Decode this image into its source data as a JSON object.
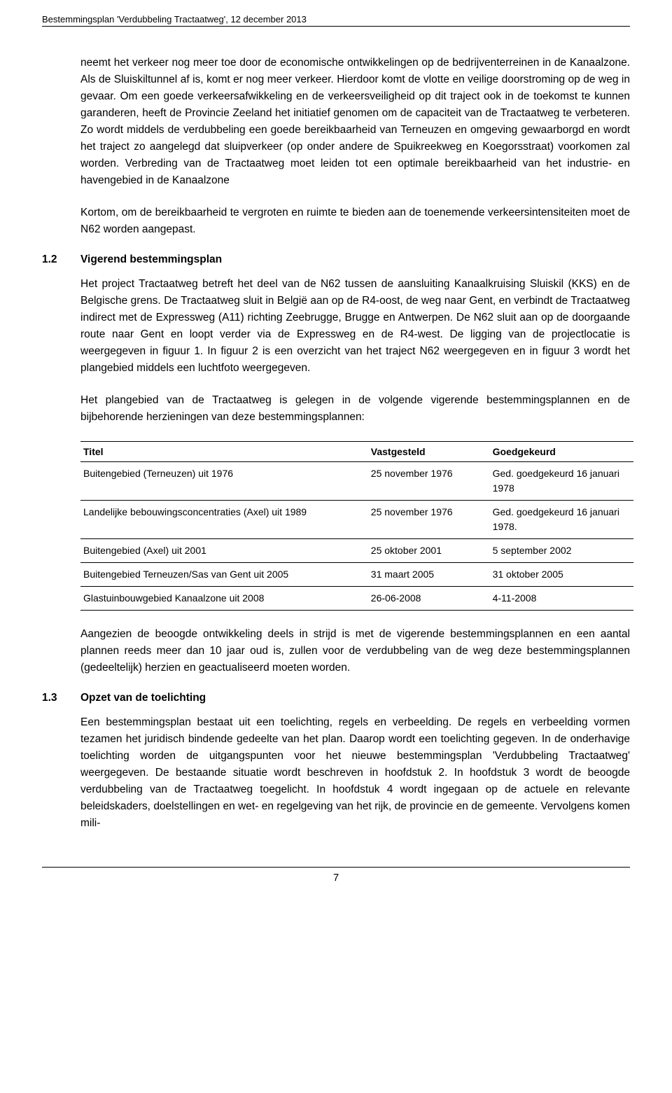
{
  "header": "Bestemmingsplan 'Verdubbeling Tractaatweg', 12 december 2013",
  "para1": "neemt het verkeer nog meer toe door de economische ontwikkelingen op de bedrijventerreinen in de Kanaalzone. Als de Sluiskiltunnel af is, komt er nog meer verkeer. Hierdoor komt de vlotte en veilige doorstroming op de weg in gevaar. Om een goede verkeersafwikkeling en de verkeersveiligheid op dit traject ook in de toekomst te kunnen garanderen, heeft de Provincie Zeeland het initiatief genomen om de capaciteit van de Tractaatweg te verbeteren. Zo wordt middels de verdubbeling een goede bereikbaarheid van Terneuzen en omgeving gewaarborgd en wordt het traject zo aangelegd dat sluipverkeer (op onder andere de Spuikreekweg en Koegorsstraat) voorkomen zal worden. Verbreding van de Tractaatweg moet leiden tot een optimale bereikbaarheid van het industrie- en havengebied in de Kanaalzone",
  "para2": "Kortom, om de bereikbaarheid te vergroten en ruimte te bieden aan de toenemende verkeersintensiteiten moet de N62 worden aangepast.",
  "sec12": {
    "num": "1.2",
    "title": "Vigerend bestemmingsplan"
  },
  "para3": "Het project Tractaatweg betreft het deel van de N62 tussen de aansluiting Kanaalkruising Sluiskil (KKS) en de Belgische grens. De Tractaatweg sluit in België aan op de R4-oost, de weg naar Gent, en verbindt de Tractaatweg indirect met de Expressweg (A11) richting Zeebrugge, Brugge en Antwerpen. De N62 sluit aan op de doorgaande route naar Gent en loopt verder via de Expressweg en de R4-west. De ligging van de projectlocatie is weergegeven in figuur 1. In figuur 2 is een overzicht van het traject N62 weergegeven en in figuur 3 wordt het plangebied middels een luchtfoto weergegeven.",
  "para4": "Het plangebied van de Tractaatweg is gelegen in de volgende vigerende bestemmingsplannen en de bijbehorende herzieningen van deze bestemmingsplannen:",
  "table": {
    "headers": {
      "titel": "Titel",
      "vastgesteld": "Vastgesteld",
      "goedgekeurd": "Goedgekeurd"
    },
    "rows": [
      {
        "titel": "Buitengebied (Terneuzen) uit 1976",
        "vastgesteld": "25 november 1976",
        "goedgekeurd": "Ged. goedgekeurd 16 januari 1978"
      },
      {
        "titel": "Landelijke bebouwingsconcentraties (Axel) uit 1989",
        "vastgesteld": "25 november 1976",
        "goedgekeurd": "Ged. goedgekeurd 16 januari 1978."
      },
      {
        "titel": "Buitengebied (Axel) uit 2001",
        "vastgesteld": "25 oktober 2001",
        "goedgekeurd": "5 september 2002"
      },
      {
        "titel": "Buitengebied Terneuzen/Sas van Gent uit 2005",
        "vastgesteld": "31 maart 2005",
        "goedgekeurd": "31 oktober 2005"
      },
      {
        "titel": "Glastuinbouwgebied Kanaalzone uit 2008",
        "vastgesteld": "26-06-2008",
        "goedgekeurd": "4-11-2008"
      }
    ]
  },
  "para5": "Aangezien de beoogde ontwikkeling deels in strijd is met de vigerende bestemmingsplannen en een aantal plannen reeds meer dan 10 jaar oud is, zullen voor de verdubbeling van de weg deze bestemmingsplannen (gedeeltelijk) herzien en geactualiseerd moeten worden.",
  "sec13": {
    "num": "1.3",
    "title": "Opzet van de toelichting"
  },
  "para6": "Een bestemmingsplan bestaat uit een toelichting, regels en verbeelding. De regels en verbeelding vormen tezamen het juridisch bindende gedeelte van het plan. Daarop wordt een toelichting gegeven. In de onderhavige toelichting worden de uitgangspunten voor het nieuwe bestemmingsplan 'Verdubbeling Tractaatweg' weergegeven. De bestaande situatie wordt beschreven in hoofdstuk 2. In hoofdstuk 3 wordt de beoogde verdubbeling van de Tractaatweg toegelicht. In hoofdstuk 4 wordt ingegaan op de actuele en relevante beleidskaders, doelstellingen en wet- en regelgeving van het rijk, de provincie en de gemeente. Vervolgens komen mili-",
  "footer": "7"
}
